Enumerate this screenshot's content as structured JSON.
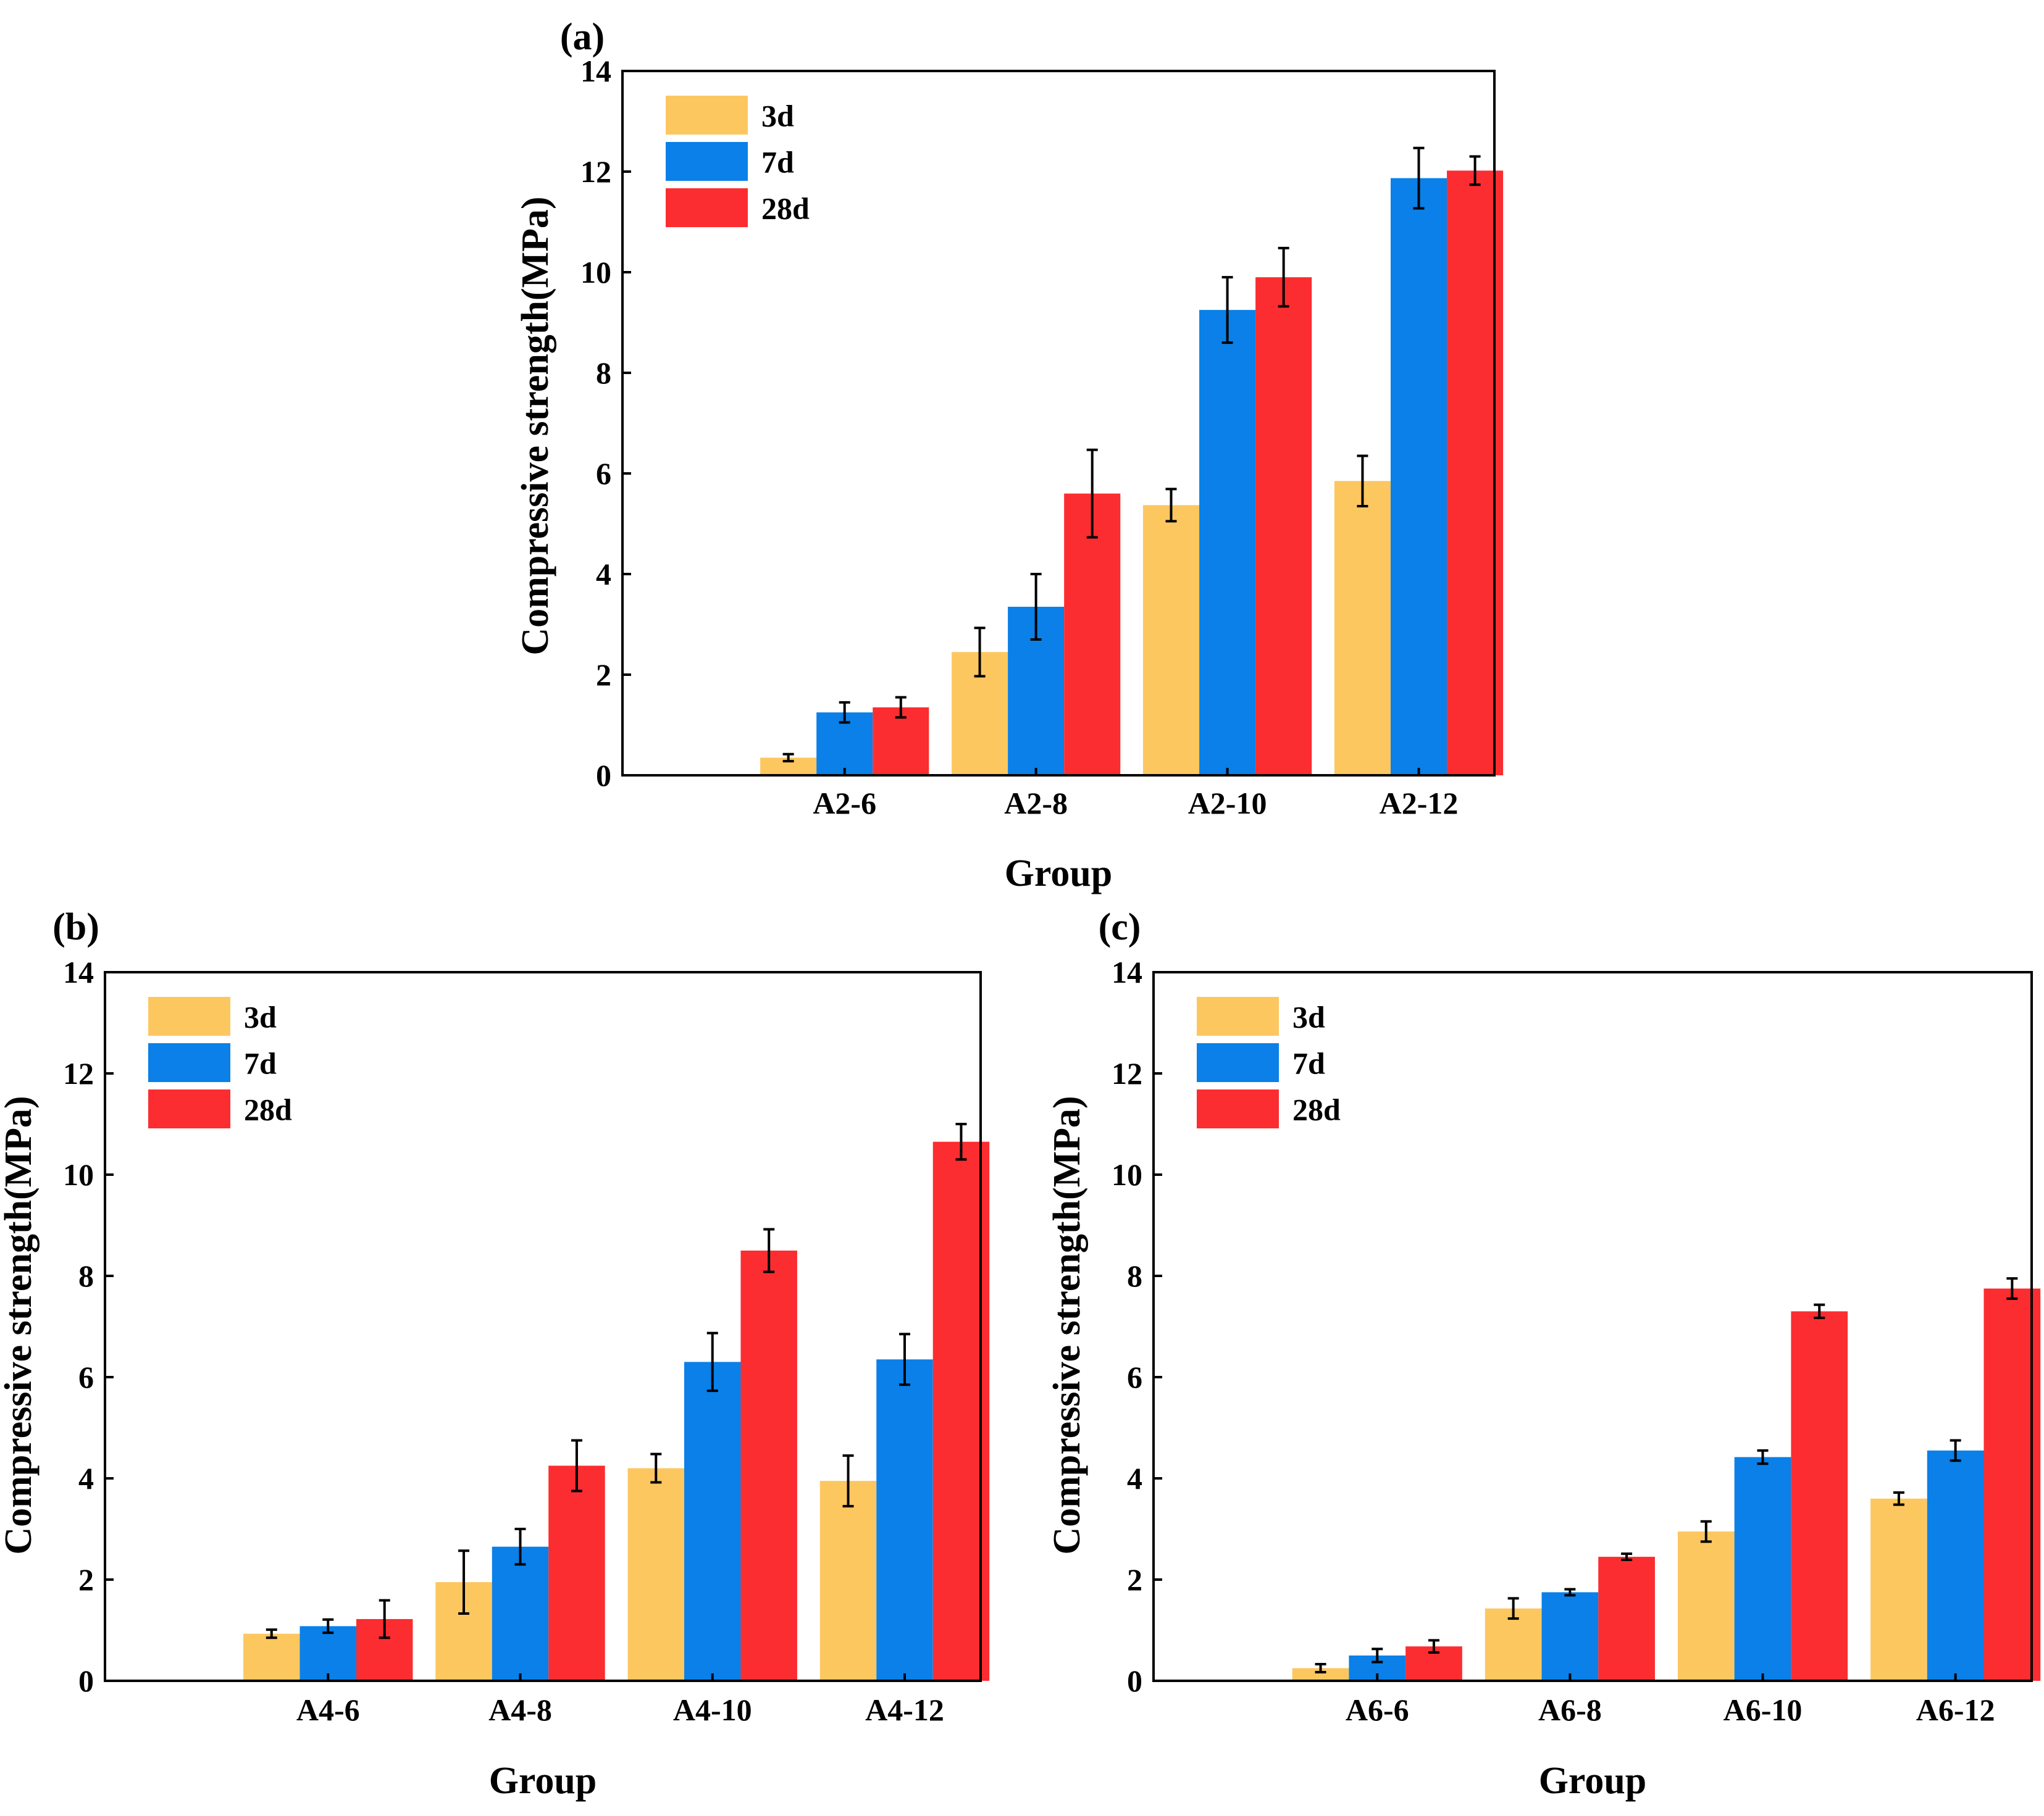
{
  "colors": {
    "d3": "#FDC760",
    "d7": "#0A80E8",
    "d28": "#FB2D30",
    "frame": "#000000"
  },
  "chart_data": [
    {
      "type": "bar",
      "panel_label": "(a)",
      "title": "",
      "xlabel": "Group",
      "ylabel": "Compressive strength(MPa)",
      "ylim": [
        0,
        14
      ],
      "yticks": [
        "0",
        "2",
        "4",
        "6",
        "8",
        "10",
        "12",
        "14"
      ],
      "legend": {
        "placement": "top-left",
        "entries": [
          "3d",
          "7d",
          "28d"
        ]
      },
      "categories": [
        "A2-6",
        "A2-8",
        "A2-10",
        "A2-12"
      ],
      "series": [
        {
          "name": "3d",
          "values": [
            0.35,
            2.45,
            5.37,
            5.85
          ],
          "errors": [
            0.07,
            0.48,
            0.32,
            0.5
          ]
        },
        {
          "name": "7d",
          "values": [
            1.25,
            3.35,
            9.25,
            11.87
          ],
          "errors": [
            0.2,
            0.65,
            0.65,
            0.6
          ]
        },
        {
          "name": "28d",
          "values": [
            1.35,
            5.6,
            9.9,
            12.02
          ],
          "errors": [
            0.2,
            0.87,
            0.58,
            0.28
          ]
        }
      ]
    },
    {
      "type": "bar",
      "panel_label": "(b)",
      "title": "",
      "xlabel": "Group",
      "ylabel": "Compressive strength(MPa)",
      "ylim": [
        0,
        14
      ],
      "yticks": [
        "0",
        "2",
        "4",
        "6",
        "8",
        "10",
        "12",
        "14"
      ],
      "legend": {
        "placement": "top-left",
        "entries": [
          "3d",
          "7d",
          "28d"
        ]
      },
      "categories": [
        "A4-6",
        "A4-8",
        "A4-10",
        "A4-12"
      ],
      "series": [
        {
          "name": "3d",
          "values": [
            0.93,
            1.95,
            4.2,
            3.95
          ],
          "errors": [
            0.08,
            0.62,
            0.28,
            0.5
          ]
        },
        {
          "name": "7d",
          "values": [
            1.08,
            2.65,
            6.3,
            6.35
          ],
          "errors": [
            0.13,
            0.35,
            0.57,
            0.5
          ]
        },
        {
          "name": "28d",
          "values": [
            1.22,
            4.25,
            8.5,
            10.65
          ],
          "errors": [
            0.37,
            0.5,
            0.42,
            0.35
          ]
        }
      ]
    },
    {
      "type": "bar",
      "panel_label": "(c)",
      "title": "",
      "xlabel": "Group",
      "ylabel": "Compressive strength(MPa)",
      "ylim": [
        0,
        14
      ],
      "yticks": [
        "0",
        "2",
        "4",
        "6",
        "8",
        "10",
        "12",
        "14"
      ],
      "legend": {
        "placement": "top-left",
        "entries": [
          "3d",
          "7d",
          "28d"
        ]
      },
      "categories": [
        "A6-6",
        "A6-8",
        "A6-10",
        "A6-12"
      ],
      "series": [
        {
          "name": "3d",
          "values": [
            0.25,
            1.43,
            2.95,
            3.6
          ],
          "errors": [
            0.08,
            0.2,
            0.2,
            0.12
          ]
        },
        {
          "name": "7d",
          "values": [
            0.5,
            1.75,
            4.42,
            4.55
          ],
          "errors": [
            0.13,
            0.06,
            0.13,
            0.2
          ]
        },
        {
          "name": "28d",
          "values": [
            0.68,
            2.45,
            7.3,
            7.75
          ],
          "errors": [
            0.12,
            0.06,
            0.13,
            0.2
          ]
        }
      ]
    }
  ]
}
